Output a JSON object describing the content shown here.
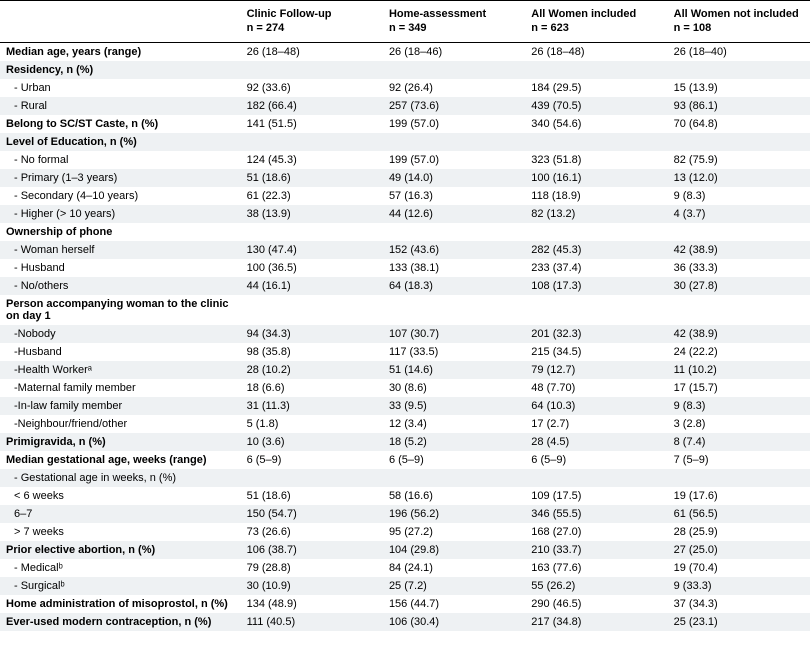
{
  "columns": [
    {
      "title": "",
      "sub": ""
    },
    {
      "title": "Clinic Follow-up",
      "sub": "n = 274"
    },
    {
      "title": "Home-assessment",
      "sub": "n = 349"
    },
    {
      "title": "All Women included",
      "sub": "n = 623"
    },
    {
      "title": "All Women not included",
      "sub": "n = 108"
    }
  ],
  "rows": [
    {
      "l": "Median age, years (range)",
      "b": true,
      "i": false,
      "alt": false,
      "v": [
        "26 (18–48)",
        "26 (18–46)",
        "26 (18–48)",
        "26 (18–40)"
      ]
    },
    {
      "l": "Residency, n (%)",
      "b": true,
      "i": false,
      "alt": true,
      "v": [
        "",
        "",
        "",
        ""
      ]
    },
    {
      "l": "- Urban",
      "b": false,
      "i": true,
      "alt": false,
      "v": [
        "92 (33.6)",
        "92 (26.4)",
        "184 (29.5)",
        "15 (13.9)"
      ]
    },
    {
      "l": "- Rural",
      "b": false,
      "i": true,
      "alt": true,
      "v": [
        "182 (66.4)",
        "257 (73.6)",
        "439 (70.5)",
        "93 (86.1)"
      ]
    },
    {
      "l": "Belong to SC/ST Caste, n (%)",
      "b": true,
      "i": false,
      "alt": false,
      "v": [
        "141 (51.5)",
        "199 (57.0)",
        "340 (54.6)",
        "70 (64.8)"
      ]
    },
    {
      "l": "Level of Education, n (%)",
      "b": true,
      "i": false,
      "alt": true,
      "v": [
        "",
        "",
        "",
        ""
      ]
    },
    {
      "l": "- No formal",
      "b": false,
      "i": true,
      "alt": false,
      "v": [
        "124 (45.3)",
        "199 (57.0)",
        "323 (51.8)",
        "82 (75.9)"
      ]
    },
    {
      "l": "- Primary (1–3 years)",
      "b": false,
      "i": true,
      "alt": true,
      "v": [
        "51 (18.6)",
        "49 (14.0)",
        "100 (16.1)",
        "13 (12.0)"
      ]
    },
    {
      "l": "- Secondary (4–10 years)",
      "b": false,
      "i": true,
      "alt": false,
      "v": [
        "61 (22.3)",
        "57 (16.3)",
        "118 (18.9)",
        "9 (8.3)"
      ]
    },
    {
      "l": "- Higher (> 10 years)",
      "b": false,
      "i": true,
      "alt": true,
      "v": [
        "38 (13.9)",
        "44 (12.6)",
        "82 (13.2)",
        "4 (3.7)"
      ]
    },
    {
      "l": "Ownership of phone",
      "b": true,
      "i": false,
      "alt": false,
      "v": [
        "",
        "",
        "",
        ""
      ]
    },
    {
      "l": "- Woman herself",
      "b": false,
      "i": true,
      "alt": true,
      "v": [
        "130 (47.4)",
        "152 (43.6)",
        "282 (45.3)",
        "42 (38.9)"
      ]
    },
    {
      "l": "- Husband",
      "b": false,
      "i": true,
      "alt": false,
      "v": [
        "100 (36.5)",
        "133 (38.1)",
        "233 (37.4)",
        "36 (33.3)"
      ]
    },
    {
      "l": "- No/others",
      "b": false,
      "i": true,
      "alt": true,
      "v": [
        "44 (16.1)",
        "64 (18.3)",
        "108 (17.3)",
        "30 (27.8)"
      ]
    },
    {
      "l": "Person accompanying woman to the clinic on day 1",
      "b": true,
      "i": false,
      "alt": false,
      "v": [
        "",
        "",
        "",
        ""
      ]
    },
    {
      "l": "-Nobody",
      "b": false,
      "i": true,
      "alt": true,
      "v": [
        "94 (34.3)",
        "107 (30.7)",
        "201 (32.3)",
        "42 (38.9)"
      ]
    },
    {
      "l": "-Husband",
      "b": false,
      "i": true,
      "alt": false,
      "v": [
        "98 (35.8)",
        "117 (33.5)",
        "215 (34.5)",
        "24 (22.2)"
      ]
    },
    {
      "l": "-Health Workerᵃ",
      "b": false,
      "i": true,
      "alt": true,
      "v": [
        "28 (10.2)",
        "51 (14.6)",
        "79 (12.7)",
        "11 (10.2)"
      ]
    },
    {
      "l": "-Maternal family member",
      "b": false,
      "i": true,
      "alt": false,
      "v": [
        "18 (6.6)",
        "30 (8.6)",
        "48 (7.70)",
        "17 (15.7)"
      ]
    },
    {
      "l": "-In-law family member",
      "b": false,
      "i": true,
      "alt": true,
      "v": [
        "31 (11.3)",
        "33 (9.5)",
        "64 (10.3)",
        "9 (8.3)"
      ]
    },
    {
      "l": "-Neighbour/friend/other",
      "b": false,
      "i": true,
      "alt": false,
      "v": [
        "5 (1.8)",
        "12 (3.4)",
        "17 (2.7)",
        "3 (2.8)"
      ]
    },
    {
      "l": "Primigravida, n (%)",
      "b": true,
      "i": false,
      "alt": true,
      "v": [
        "10 (3.6)",
        "18 (5.2)",
        "28 (4.5)",
        "8 (7.4)"
      ]
    },
    {
      "l": "Median gestational age, weeks (range)",
      "b": true,
      "i": false,
      "alt": false,
      "v": [
        "6 (5–9)",
        "6 (5–9)",
        "6 (5–9)",
        "7 (5–9)"
      ]
    },
    {
      "l": "- Gestational age in weeks, n (%)",
      "b": false,
      "i": true,
      "alt": true,
      "v": [
        "",
        "",
        "",
        ""
      ]
    },
    {
      "l": "< 6 weeks",
      "b": false,
      "i": true,
      "alt": false,
      "v": [
        "51 (18.6)",
        "58 (16.6)",
        "109 (17.5)",
        "19 (17.6)"
      ]
    },
    {
      "l": "6–7",
      "b": false,
      "i": true,
      "alt": true,
      "v": [
        "150 (54.7)",
        "196 (56.2)",
        "346 (55.5)",
        "61 (56.5)"
      ]
    },
    {
      "l": "> 7 weeks",
      "b": false,
      "i": true,
      "alt": false,
      "v": [
        "73 (26.6)",
        "95 (27.2)",
        "168 (27.0)",
        "28 (25.9)"
      ]
    },
    {
      "l": "Prior elective abortion, n (%)",
      "b": true,
      "i": false,
      "alt": true,
      "v": [
        "106 (38.7)",
        "104 (29.8)",
        "210 (33.7)",
        "27 (25.0)"
      ]
    },
    {
      "l": "- Medicalᵇ",
      "b": false,
      "i": true,
      "alt": false,
      "v": [
        "79 (28.8)",
        "84 (24.1)",
        "163 (77.6)",
        "19 (70.4)"
      ]
    },
    {
      "l": "- Surgicalᵇ",
      "b": false,
      "i": true,
      "alt": true,
      "v": [
        "30 (10.9)",
        "25 (7.2)",
        "55 (26.2)",
        "9 (33.3)"
      ]
    },
    {
      "l": "Home administration of misoprostol, n (%)",
      "b": true,
      "i": false,
      "alt": false,
      "v": [
        "134 (48.9)",
        "156 (44.7)",
        "290 (46.5)",
        "37 (34.3)"
      ]
    },
    {
      "l": "Ever-used modern contraception, n (%)",
      "b": true,
      "i": false,
      "alt": true,
      "v": [
        "111 (40.5)",
        "106 (30.4)",
        "217 (34.8)",
        "25 (23.1)"
      ]
    }
  ]
}
